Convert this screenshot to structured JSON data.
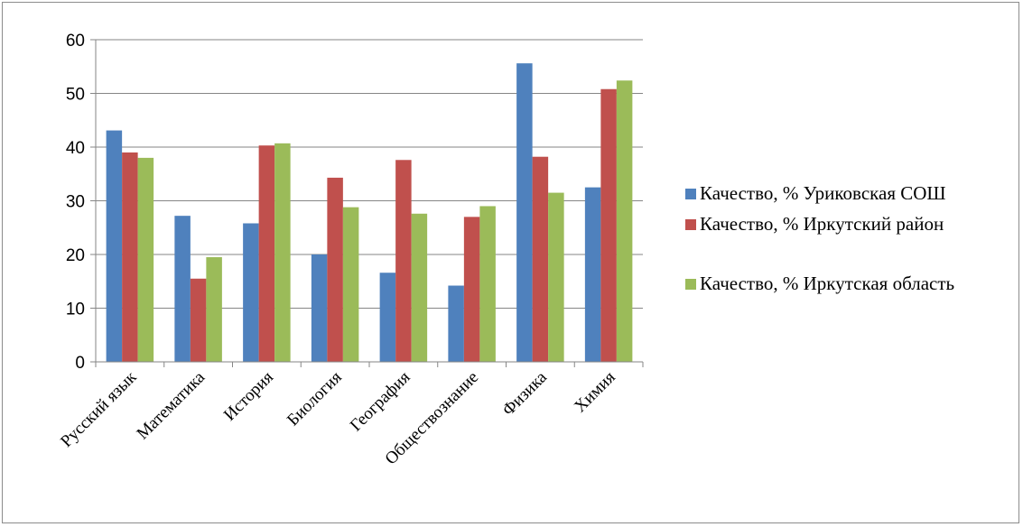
{
  "chart_data": {
    "type": "bar",
    "title": "",
    "xlabel": "",
    "ylabel": "",
    "ylim": [
      0,
      60
    ],
    "yticks": [
      0,
      10,
      20,
      30,
      40,
      50,
      60
    ],
    "grid": true,
    "legend_position": "right",
    "categories": [
      "Русский язык",
      "Математика",
      "История",
      "Биология",
      "География",
      "Обществознание",
      "Физика",
      "Химия"
    ],
    "series": [
      {
        "name": "Качество, % Уриковская СОШ",
        "color": "#4f81bd",
        "values": [
          43.1,
          27.2,
          25.8,
          20.0,
          16.6,
          14.2,
          55.6,
          32.5
        ]
      },
      {
        "name": "Качество, % Иркутский район",
        "color": "#c0504d",
        "values": [
          39.0,
          15.5,
          40.3,
          34.3,
          37.6,
          27.0,
          38.2,
          50.8
        ]
      },
      {
        "name": "Качество, % Иркутская область",
        "color": "#9bbb59",
        "values": [
          38.0,
          19.5,
          40.7,
          28.8,
          27.6,
          29.0,
          31.5,
          52.4
        ]
      }
    ]
  }
}
